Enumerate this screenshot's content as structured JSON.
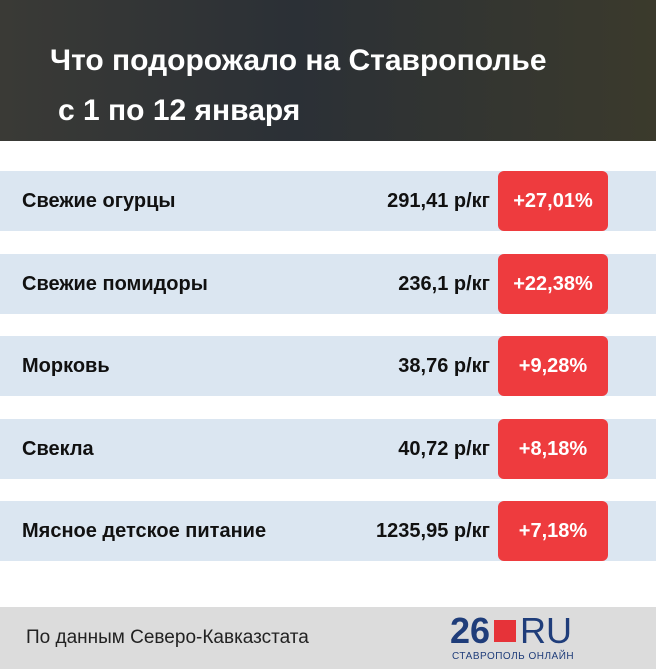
{
  "header": {
    "title_lines": [
      "Что подорожало на Ставрополье",
      "с 1 по 12 января"
    ]
  },
  "table": {
    "rows": [
      {
        "name": "Свежие огурцы",
        "price": "291,41 р/кг",
        "change": "+27,01%"
      },
      {
        "name": "Свежие помидоры",
        "price": "236,1 р/кг",
        "change": "+22,38%"
      },
      {
        "name": "Морковь",
        "price": "38,76 р/кг",
        "change": "+9,28%"
      },
      {
        "name": "Свекла",
        "price": "40,72 р/кг",
        "change": "+8,18%"
      },
      {
        "name": "Мясное детское питание",
        "price": "1235,95 р/кг",
        "change": "+7,18%"
      }
    ]
  },
  "footer": {
    "source": "По данным Северо-Кавказстата",
    "logo_number": "26",
    "logo_domain": "RU",
    "logo_city": "СТАВРОПОЛЬ ОНЛАЙН"
  }
}
